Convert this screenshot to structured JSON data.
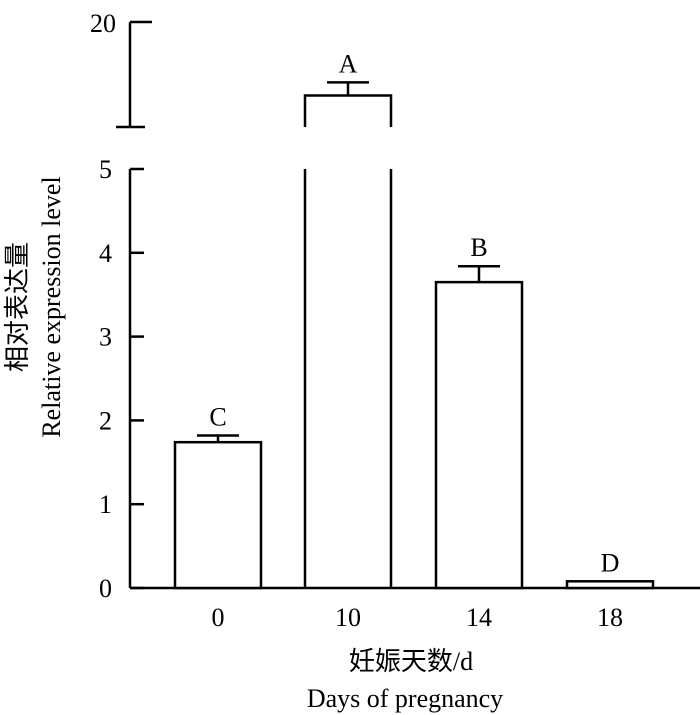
{
  "chart_data": {
    "type": "bar",
    "categories": [
      "0",
      "10",
      "14",
      "18"
    ],
    "values": [
      1.74,
      17.2,
      3.65,
      0.08
    ],
    "errors": [
      0.08,
      0.5,
      0.19,
      0.0
    ],
    "significance": [
      "C",
      "A",
      "B",
      "D"
    ],
    "xlabel_cn": "妊娠天数/d",
    "xlabel": "Days of pregnancy",
    "ylabel_cn": "相对表达量",
    "ylabel": "Relative expression level",
    "y_lower": {
      "range": [
        0,
        5
      ],
      "ticks": [
        "0",
        "1",
        "2",
        "3",
        "4",
        "5"
      ]
    },
    "y_upper": {
      "range": [
        16,
        20
      ],
      "ticks": [
        "20"
      ]
    },
    "axis_break": true,
    "grid": false,
    "legend": "none"
  }
}
